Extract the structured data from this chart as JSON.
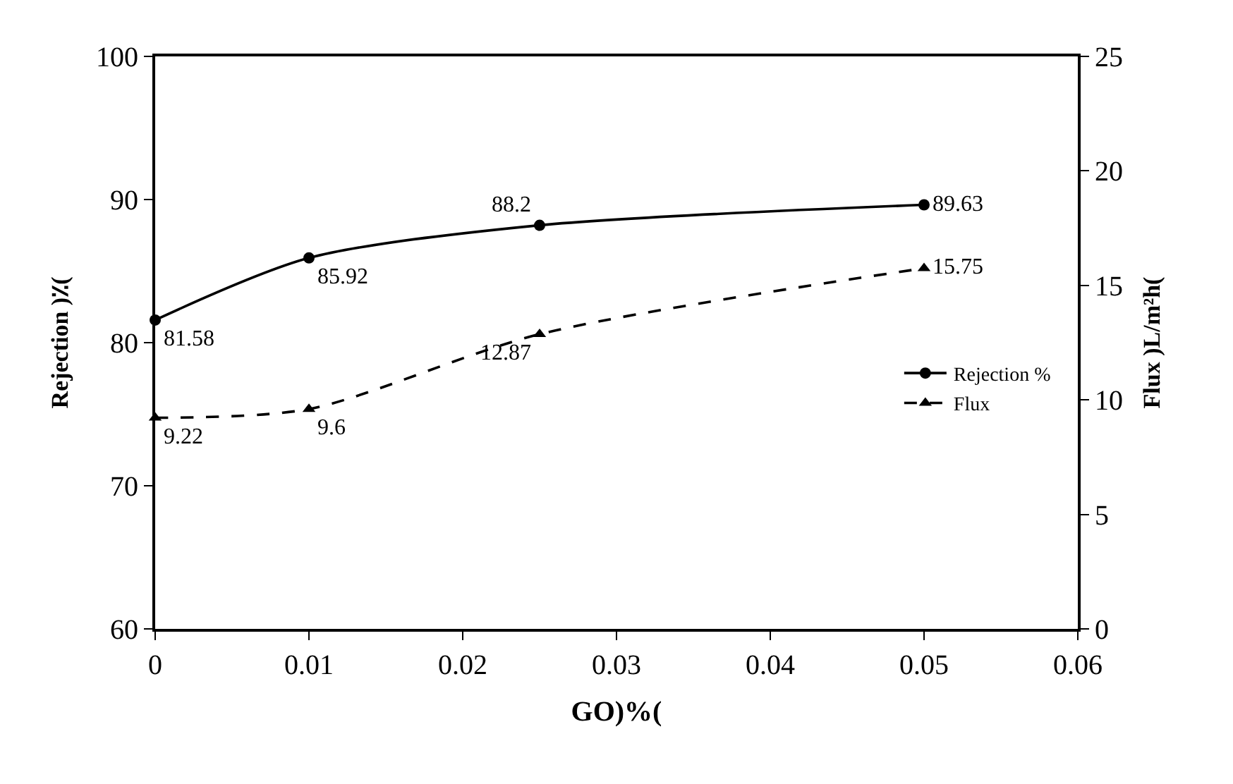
{
  "chart_data": {
    "type": "line",
    "x": [
      0,
      0.01,
      0.025,
      0.05
    ],
    "xlabel": "GO)%(",
    "ylabel": "Rejection )٪(",
    "y2label": "Flux )L/m²h(",
    "series": [
      {
        "name": "Rejection %",
        "color": "#000000",
        "values": [
          81.58,
          85.92,
          88.2,
          89.63
        ],
        "marker": "circle",
        "line_style": "solid"
      },
      {
        "name": "Flux",
        "color": "#000000",
        "values": [
          9.22,
          9.6,
          12.87,
          15.75
        ],
        "axis": "y2",
        "marker": "triangle",
        "line_style": "dashed"
      }
    ],
    "xlim": [
      0,
      0.06
    ],
    "xticks": [
      0,
      0.01,
      0.02,
      0.03,
      0.04,
      0.05,
      0.06
    ],
    "ylim": [
      60,
      100
    ],
    "yticks": [
      60,
      70,
      80,
      90,
      100
    ],
    "y2lim": [
      0,
      25
    ],
    "y2ticks": [
      0,
      5,
      10,
      15,
      20,
      25
    ],
    "data_labels": true,
    "legend": "right"
  }
}
